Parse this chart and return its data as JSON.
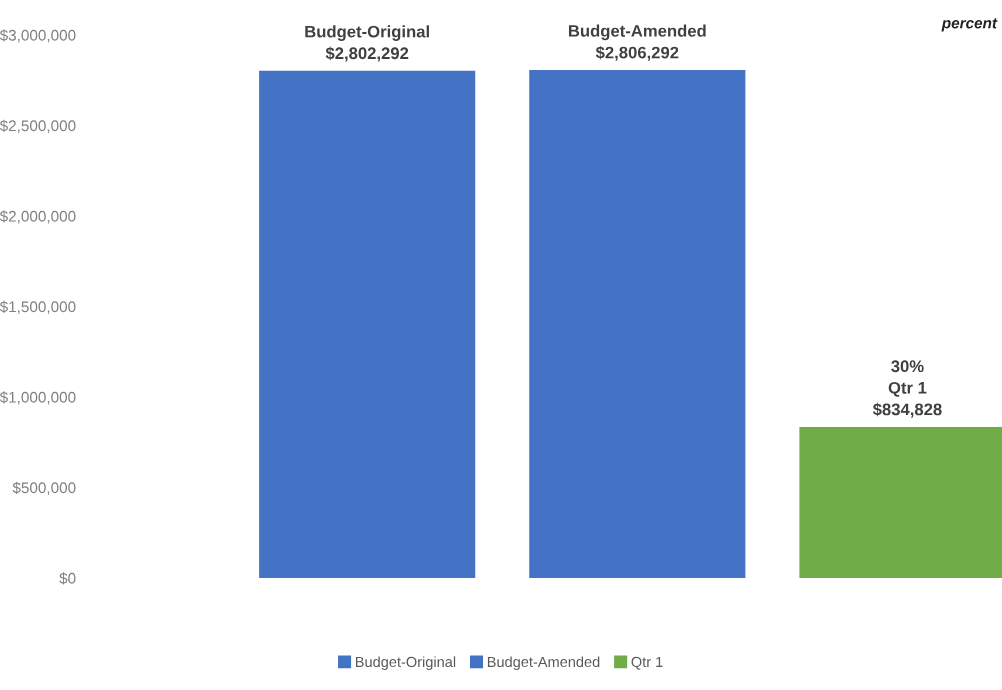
{
  "chart_data": {
    "type": "bar",
    "stacked": true,
    "categories": [
      null,
      null,
      null
    ],
    "series": [
      {
        "name": "Budget-Original",
        "color": "#4472c4",
        "values": [
          2802292,
          null,
          null
        ],
        "value_labels": [
          "Budget-Original\n$2,802,292",
          null,
          null
        ]
      },
      {
        "name": "Budget-Amended",
        "color": "#4472c4",
        "values": [
          null,
          2806292,
          null
        ],
        "value_labels": [
          null,
          "Budget-Amended\n$2,806,292",
          null
        ]
      },
      {
        "name": "Qtr 1",
        "color": "#70ad47",
        "values": [
          null,
          null,
          834828
        ],
        "value_labels": [
          null,
          null,
          "30%\nQtr 1\n$834,828"
        ]
      }
    ],
    "ylim": [
      0,
      3000000
    ],
    "yticks": [
      {
        "value": 0,
        "label": "$0"
      },
      {
        "value": 500000,
        "label": "$500,000"
      },
      {
        "value": 1000000,
        "label": "$1,000,000"
      },
      {
        "value": 1500000,
        "label": "$1,500,000"
      },
      {
        "value": 2000000,
        "label": "$2,000,000"
      },
      {
        "value": 2500000,
        "label": "$2,500,000"
      },
      {
        "value": 3000000,
        "label": "$3,000,000"
      }
    ],
    "grid": false,
    "legend": "bottom",
    "annotations": [
      "percent"
    ]
  }
}
